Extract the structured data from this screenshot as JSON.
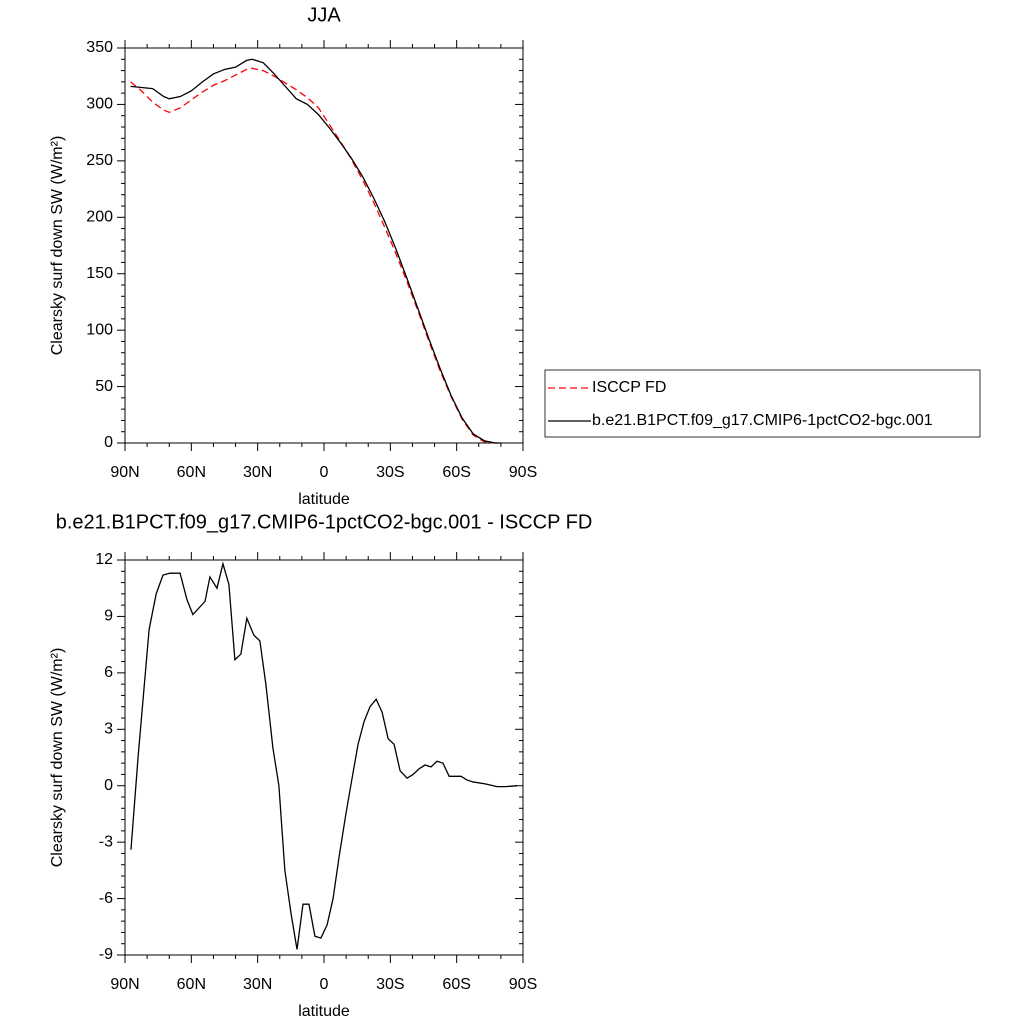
{
  "chart_data": [
    {
      "type": "line",
      "title": "JJA",
      "xlabel": "latitude",
      "ylabel": "Clearsky surf down SW (W/m²)",
      "x": [
        87.5,
        82.5,
        77.5,
        72.5,
        70,
        65,
        60,
        55,
        50,
        45,
        40,
        35,
        32.5,
        27.5,
        22.5,
        17.5,
        12.5,
        7.5,
        2.5,
        -2.5,
        -7.5,
        -12.5,
        -17.5,
        -22.5,
        -27.5,
        -32.5,
        -37.5,
        -42.5,
        -47.5,
        -52.5,
        -57.5,
        -62.5,
        -67.5,
        -72.5,
        -77.5,
        -80
      ],
      "series": [
        {
          "name": "ISCCP FD",
          "color": "#ff0000",
          "dashed": true,
          "values": [
            320,
            312,
            302,
            295,
            293,
            297,
            304,
            311,
            317,
            321,
            326,
            331,
            332,
            330,
            325,
            319,
            313,
            306,
            297,
            282,
            267,
            251,
            233,
            213,
            191,
            168,
            143,
            117,
            90,
            64,
            41,
            21,
            7,
            1,
            0,
            0
          ]
        },
        {
          "name": "b.e21.B1PCT.f09_g17.CMIP6-1pctCO2-bgc.001",
          "color": "#000000",
          "dashed": false,
          "values": [
            316,
            315,
            314,
            307,
            305,
            307,
            312,
            320,
            327,
            331,
            333,
            339,
            340,
            337,
            327,
            316,
            305,
            300,
            291,
            279,
            266,
            252,
            236,
            217,
            196,
            172,
            146,
            119,
            92,
            66,
            42,
            22,
            8,
            2,
            0,
            0
          ]
        }
      ],
      "xlim": [
        90,
        -90
      ],
      "xticks": [
        {
          "value": 90,
          "label": "90N"
        },
        {
          "value": 60,
          "label": "60N"
        },
        {
          "value": 30,
          "label": "30N"
        },
        0,
        {
          "value": -30,
          "label": "30S"
        },
        {
          "value": -60,
          "label": "60S"
        },
        {
          "value": -90,
          "label": "90S"
        }
      ],
      "ylim": [
        0,
        350
      ],
      "yticks": [
        0,
        50,
        100,
        150,
        200,
        250,
        300,
        350
      ],
      "legend": "right"
    },
    {
      "type": "line",
      "title": "b.e21.B1PCT.f09_g17.CMIP6-1pctCO2-bgc.001 - ISCCP FD",
      "xlabel": "latitude",
      "ylabel": "Clearsky surf down SW (W/m²)",
      "x": [
        87.3,
        84.1,
        79.1,
        75.9,
        72.8,
        69.6,
        65.1,
        62,
        59.3,
        53.8,
        51.6,
        48.4,
        45.7,
        43,
        40.3,
        37.6,
        34.9,
        31.7,
        29,
        26.3,
        23.1,
        20.4,
        17.7,
        14.9,
        12.2,
        9.5,
        6.8,
        4.1,
        1.4,
        -1.4,
        -4.1,
        -6.8,
        -9.9,
        -12.7,
        -15.4,
        -18.1,
        -20.8,
        -23.6,
        -26.3,
        -29,
        -31.7,
        -34.4,
        -37.6,
        -40.3,
        -43,
        -45.7,
        -48.4,
        -51.1,
        -53.8,
        -56.6,
        -62,
        -64.7,
        -67.4,
        -72.9,
        -78.3,
        -81.9,
        -87.3
      ],
      "values": [
        -3.4,
        1.5,
        8.3,
        10.2,
        11.2,
        11.3,
        11.3,
        9.9,
        9.1,
        9.8,
        11.1,
        10.5,
        11.8,
        10.7,
        6.7,
        7.0,
        8.9,
        8.0,
        7.7,
        5.4,
        2.0,
        0.0,
        -4.5,
        -6.8,
        -8.7,
        -6.3,
        -6.3,
        -8.0,
        -8.1,
        -7.4,
        -6.0,
        -3.8,
        -1.5,
        0.4,
        2.2,
        3.4,
        4.2,
        4.6,
        3.9,
        2.5,
        2.2,
        0.8,
        0.4,
        0.6,
        0.9,
        1.1,
        1.0,
        1.3,
        1.2,
        0.5,
        0.5,
        0.3,
        0.2,
        0.1,
        -0.05,
        -0.05,
        0.0
      ],
      "color": "#000000",
      "xlim": [
        90,
        -90
      ],
      "xticks": [
        {
          "value": 90,
          "label": "90N"
        },
        {
          "value": 60,
          "label": "60N"
        },
        {
          "value": 30,
          "label": "30N"
        },
        0,
        {
          "value": -30,
          "label": "30S"
        },
        {
          "value": -60,
          "label": "60S"
        },
        {
          "value": -90,
          "label": "90S"
        }
      ],
      "ylim": [
        -9,
        12
      ],
      "yticks": [
        -9,
        -6,
        -3,
        0,
        3,
        6,
        9,
        12
      ]
    }
  ]
}
